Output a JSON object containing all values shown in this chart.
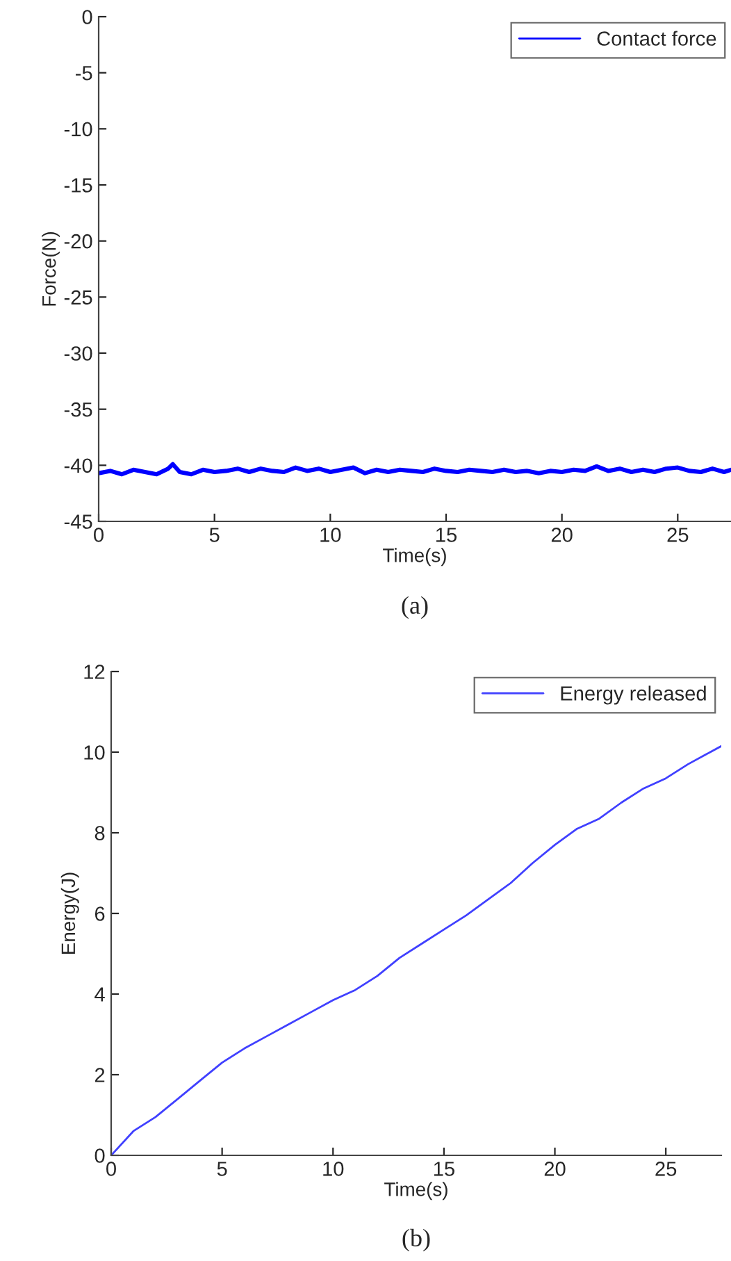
{
  "chart_data": [
    {
      "type": "line",
      "xlabel": "Time(s)",
      "ylabel": "Force(N)",
      "annotations": [
        "(a)"
      ],
      "legend": "top right",
      "grid": false,
      "xlim": [
        0,
        27.3
      ],
      "xticks": [
        0,
        5,
        10,
        15,
        20,
        25
      ],
      "ylim": [
        -45,
        0
      ],
      "yticks": [
        -45,
        -40,
        -35,
        -30,
        -25,
        -20,
        -15,
        -10,
        -5,
        0
      ],
      "x": [
        0,
        0.5,
        1,
        1.5,
        2,
        2.5,
        3,
        3.2,
        3.5,
        4,
        4.5,
        5,
        5.5,
        6,
        6.5,
        7,
        7.5,
        8,
        8.5,
        9,
        9.5,
        10,
        10.5,
        11,
        11.5,
        12,
        12.5,
        13,
        13.5,
        14,
        14.5,
        15,
        15.5,
        16,
        16.5,
        17,
        17.5,
        18,
        18.5,
        19,
        19.5,
        20,
        20.5,
        21,
        21.5,
        22,
        22.5,
        23,
        23.5,
        24,
        24.5,
        25,
        25.5,
        26,
        26.5,
        27,
        27.3
      ],
      "series": [
        {
          "name": "Contact force",
          "color": "#0000ff",
          "values": [
            -40.7,
            -40.5,
            -40.8,
            -40.4,
            -40.6,
            -40.8,
            -40.3,
            -39.9,
            -40.6,
            -40.8,
            -40.4,
            -40.6,
            -40.5,
            -40.3,
            -40.6,
            -40.3,
            -40.5,
            -40.6,
            -40.2,
            -40.5,
            -40.3,
            -40.6,
            -40.4,
            -40.2,
            -40.7,
            -40.4,
            -40.6,
            -40.4,
            -40.5,
            -40.6,
            -40.3,
            -40.5,
            -40.6,
            -40.4,
            -40.5,
            -40.6,
            -40.4,
            -40.6,
            -40.5,
            -40.7,
            -40.5,
            -40.6,
            -40.4,
            -40.5,
            -40.1,
            -40.5,
            -40.3,
            -40.6,
            -40.4,
            -40.6,
            -40.3,
            -40.2,
            -40.5,
            -40.6,
            -40.3,
            -40.6,
            -40.4
          ]
        }
      ]
    },
    {
      "type": "line",
      "xlabel": "Time(s)",
      "ylabel": "Energy(J)",
      "annotations": [
        "(b)"
      ],
      "legend": "top right",
      "grid": false,
      "xlim": [
        0,
        27.5
      ],
      "xticks": [
        0,
        5,
        10,
        15,
        20,
        25
      ],
      "ylim": [
        0,
        12
      ],
      "yticks": [
        0,
        2,
        4,
        6,
        8,
        10,
        12
      ],
      "x": [
        0,
        1,
        2,
        3,
        4,
        5,
        6,
        7,
        8,
        9,
        10,
        11,
        12,
        13,
        14,
        15,
        16,
        17,
        18,
        19,
        20,
        21,
        22,
        23,
        24,
        25,
        26,
        27,
        27.5
      ],
      "series": [
        {
          "name": "Energy released",
          "color": "#4040ff",
          "values": [
            0,
            0.6,
            0.95,
            1.4,
            1.85,
            2.3,
            2.65,
            2.95,
            3.25,
            3.55,
            3.85,
            4.1,
            4.45,
            4.9,
            5.25,
            5.6,
            5.95,
            6.35,
            6.75,
            7.25,
            7.7,
            8.1,
            8.35,
            8.75,
            9.1,
            9.35,
            9.7,
            10.0,
            10.15
          ]
        }
      ]
    }
  ]
}
